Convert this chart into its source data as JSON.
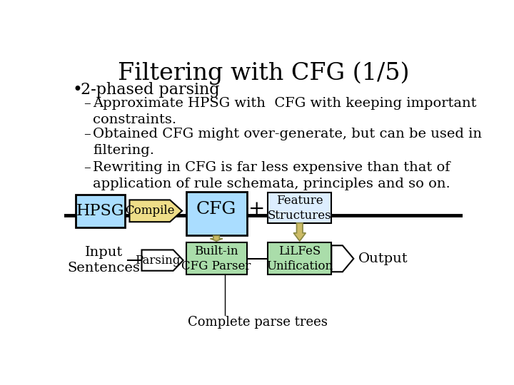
{
  "title": "Filtering with CFG (1/5)",
  "background_color": "#ffffff",
  "title_fontsize": 24,
  "bullet_text": "2-phased parsing",
  "sub_bullets": [
    "Approximate HPSG with  CFG with keeping important\nconstraints.",
    "Obtained CFG might over-generate, but can be used in\nfiltering.",
    "Rewriting in CFG is far less expensive than that of\napplication of rule schemata, principles and so on."
  ],
  "box_hpsg_color": "#aaddff",
  "box_cfg_color": "#aaddff",
  "box_feature_color": "#ddeeff",
  "box_compile_color": "#eedd88",
  "box_builtin_color": "#aaddaa",
  "box_lilfes_color": "#aaddaa",
  "box_parsing_color": "#ffffff",
  "line_color": "#000000",
  "down_arrow_color": "#ccbb66",
  "text_color": "#000000"
}
